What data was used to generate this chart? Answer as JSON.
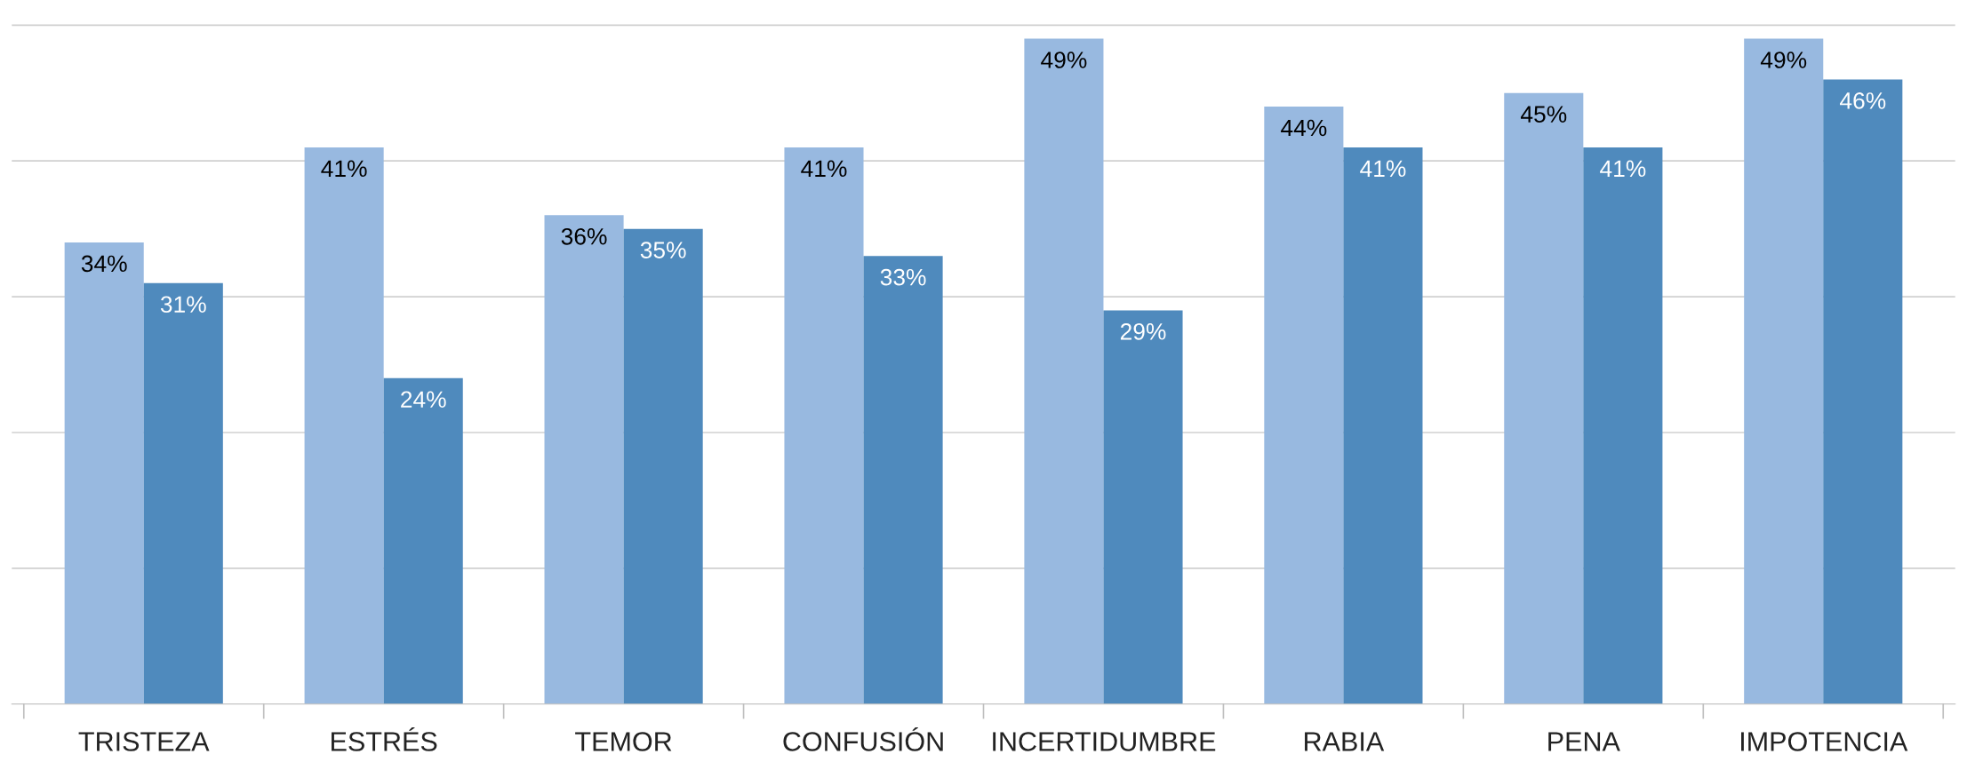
{
  "chart_data": {
    "type": "bar",
    "categories": [
      "TRISTEZA",
      "ESTRÉS",
      "TEMOR",
      "CONFUSIÓN",
      "INCERTIDUMBRE",
      "RABIA",
      "PENA",
      "IMPOTENCIA"
    ],
    "series": [
      {
        "color": "#98b9e0",
        "values": [
          34,
          41,
          36,
          41,
          49,
          44,
          45,
          49
        ],
        "value_labels": [
          "34%",
          "41%",
          "36%",
          "41%",
          "49%",
          "44%",
          "45%",
          "49%"
        ]
      },
      {
        "color": "#4f8abd",
        "values": [
          31,
          24,
          35,
          33,
          29,
          41,
          41,
          46
        ],
        "value_labels": [
          "31%",
          "24%",
          "35%",
          "33%",
          "29%",
          "41%",
          "41%",
          "46%"
        ]
      }
    ],
    "grid": "y",
    "tick_labels": "x"
  }
}
